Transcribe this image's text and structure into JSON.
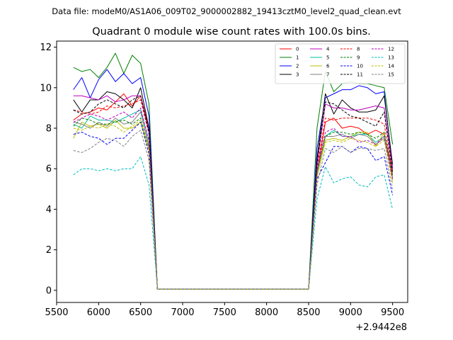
{
  "header": {
    "data_file": "Data file: modeM0/AS1A06_009T02_9000002882_19413cztM0_level2_quad_clean.evt"
  },
  "chart_data": {
    "type": "line",
    "title": "Quadrant 0 module wise count rates with 100.0s bins.",
    "xlabel": "",
    "ylabel": "",
    "x_offset_label": "+2.9442e8",
    "xlim": [
      5500,
      9680
    ],
    "ylim": [
      -0.6,
      12.3
    ],
    "xticks": [
      5500,
      6000,
      6500,
      7000,
      7500,
      8000,
      8500,
      9000,
      9500
    ],
    "yticks": [
      0,
      2,
      4,
      6,
      8,
      10,
      12
    ],
    "x": [
      5700,
      5800,
      5900,
      6000,
      6100,
      6200,
      6300,
      6400,
      6500,
      6600,
      6700,
      6800,
      6900,
      7000,
      7100,
      7200,
      7300,
      7400,
      7500,
      7600,
      7700,
      7800,
      7900,
      8000,
      8100,
      8200,
      8300,
      8400,
      8500,
      8600,
      8700,
      8800,
      8900,
      9000,
      9100,
      9200,
      9300,
      9400,
      9500
    ],
    "legend_position": "top-right",
    "series": [
      {
        "name": "0",
        "color": "#ff0000",
        "dashed": false,
        "values": [
          8.4,
          8.7,
          8.8,
          9.0,
          8.9,
          9.3,
          9.7,
          9.1,
          9.6,
          8.0,
          0.05,
          0.05,
          0.05,
          0.05,
          0.05,
          0.05,
          0.05,
          0.05,
          0.05,
          0.05,
          0.05,
          0.05,
          0.05,
          0.05,
          0.05,
          0.05,
          0.05,
          0.05,
          0.05,
          5.8,
          8.3,
          8.5,
          8.0,
          8.1,
          8.0,
          7.7,
          7.9,
          7.7,
          5.9
        ]
      },
      {
        "name": "1",
        "color": "#008000",
        "dashed": false,
        "values": [
          11.0,
          10.8,
          10.9,
          10.5,
          11.0,
          11.7,
          10.7,
          11.6,
          11.2,
          9.2,
          0.05,
          0.05,
          0.05,
          0.05,
          0.05,
          0.05,
          0.05,
          0.05,
          0.05,
          0.05,
          0.05,
          0.05,
          0.05,
          0.05,
          0.05,
          0.05,
          0.05,
          0.05,
          0.05,
          8.0,
          10.8,
          9.8,
          10.2,
          10.3,
          10.2,
          10.2,
          10.1,
          10.0,
          7.2
        ]
      },
      {
        "name": "2",
        "color": "#0000ff",
        "dashed": false,
        "values": [
          9.9,
          10.5,
          9.5,
          10.4,
          10.9,
          10.3,
          10.7,
          10.2,
          10.5,
          8.6,
          0.05,
          0.05,
          0.05,
          0.05,
          0.05,
          0.05,
          0.05,
          0.05,
          0.05,
          0.05,
          0.05,
          0.05,
          0.05,
          0.05,
          0.05,
          0.05,
          0.05,
          0.05,
          0.05,
          7.0,
          9.5,
          9.7,
          9.9,
          9.9,
          10.1,
          10.0,
          9.7,
          9.8,
          6.0
        ]
      },
      {
        "name": "3",
        "color": "#000000",
        "dashed": false,
        "values": [
          9.4,
          8.8,
          9.4,
          9.4,
          9.8,
          9.7,
          9.4,
          9.0,
          10.0,
          8.0,
          0.05,
          0.05,
          0.05,
          0.05,
          0.05,
          0.05,
          0.05,
          0.05,
          0.05,
          0.05,
          0.05,
          0.05,
          0.05,
          0.05,
          0.05,
          0.05,
          0.05,
          0.05,
          0.05,
          6.5,
          9.7,
          8.7,
          9.4,
          9.0,
          8.8,
          8.8,
          8.9,
          9.6,
          6.2
        ]
      },
      {
        "name": "4",
        "color": "#bf00bf",
        "dashed": false,
        "values": [
          9.6,
          9.6,
          9.5,
          9.4,
          9.6,
          9.3,
          9.4,
          9.6,
          9.6,
          7.8,
          0.05,
          0.05,
          0.05,
          0.05,
          0.05,
          0.05,
          0.05,
          0.05,
          0.05,
          0.05,
          0.05,
          0.05,
          0.05,
          0.05,
          0.05,
          0.05,
          0.05,
          0.05,
          0.05,
          6.2,
          9.2,
          9.0,
          9.0,
          8.9,
          8.9,
          9.0,
          9.1,
          9.0,
          6.0
        ]
      },
      {
        "name": "5",
        "color": "#00c0a0",
        "dashed": false,
        "values": [
          8.2,
          8.0,
          8.6,
          8.4,
          8.4,
          8.3,
          8.5,
          8.7,
          8.9,
          7.4,
          0.05,
          0.05,
          0.05,
          0.05,
          0.05,
          0.05,
          0.05,
          0.05,
          0.05,
          0.05,
          0.05,
          0.05,
          0.05,
          0.05,
          0.05,
          0.05,
          0.05,
          0.05,
          0.05,
          5.8,
          7.6,
          7.9,
          7.6,
          7.6,
          7.7,
          7.7,
          7.3,
          7.6,
          5.5
        ]
      },
      {
        "name": "6",
        "color": "#bfbf00",
        "dashed": false,
        "values": [
          7.5,
          8.3,
          8.1,
          8.2,
          8.0,
          8.4,
          8.0,
          8.0,
          8.3,
          6.9,
          0.05,
          0.05,
          0.05,
          0.05,
          0.05,
          0.05,
          0.05,
          0.05,
          0.05,
          0.05,
          0.05,
          0.05,
          0.05,
          0.05,
          0.05,
          0.05,
          0.05,
          0.05,
          0.05,
          5.6,
          7.4,
          7.5,
          7.4,
          7.6,
          7.8,
          7.8,
          7.1,
          7.8,
          5.4
        ]
      },
      {
        "name": "7",
        "color": "#808080",
        "dashed": false,
        "values": [
          8.3,
          8.2,
          8.0,
          8.3,
          8.1,
          8.5,
          8.2,
          8.3,
          8.8,
          7.1,
          0.05,
          0.05,
          0.05,
          0.05,
          0.05,
          0.05,
          0.05,
          0.05,
          0.05,
          0.05,
          0.05,
          0.05,
          0.05,
          0.05,
          0.05,
          0.05,
          0.05,
          0.05,
          0.05,
          5.9,
          7.6,
          7.6,
          7.7,
          7.5,
          7.7,
          7.6,
          7.2,
          7.5,
          5.6
        ]
      },
      {
        "name": "8",
        "color": "#ff0000",
        "dashed": true,
        "values": [
          8.9,
          8.8,
          8.7,
          8.8,
          9.1,
          9.0,
          9.1,
          9.2,
          9.4,
          7.7,
          0.05,
          0.05,
          0.05,
          0.05,
          0.05,
          0.05,
          0.05,
          0.05,
          0.05,
          0.05,
          0.05,
          0.05,
          0.05,
          0.05,
          0.05,
          0.05,
          0.05,
          0.05,
          0.05,
          6.0,
          8.5,
          8.4,
          8.5,
          8.5,
          8.5,
          8.5,
          8.4,
          8.2,
          5.7
        ]
      },
      {
        "name": "9",
        "color": "#008000",
        "dashed": true,
        "values": [
          8.1,
          8.5,
          8.4,
          8.2,
          8.2,
          8.3,
          8.4,
          8.2,
          8.5,
          7.0,
          0.05,
          0.05,
          0.05,
          0.05,
          0.05,
          0.05,
          0.05,
          0.05,
          0.05,
          0.05,
          0.05,
          0.05,
          0.05,
          0.05,
          0.05,
          0.05,
          0.05,
          0.05,
          0.05,
          5.8,
          7.6,
          7.8,
          7.8,
          7.7,
          7.8,
          7.7,
          7.5,
          7.8,
          5.7
        ]
      },
      {
        "name": "10",
        "color": "#0000ff",
        "dashed": true,
        "values": [
          7.7,
          7.8,
          7.6,
          7.5,
          7.2,
          7.5,
          7.5,
          7.9,
          8.3,
          6.7,
          0.05,
          0.05,
          0.05,
          0.05,
          0.05,
          0.05,
          0.05,
          0.05,
          0.05,
          0.05,
          0.05,
          0.05,
          0.05,
          0.05,
          0.05,
          0.05,
          0.05,
          0.05,
          0.05,
          5.5,
          6.3,
          7.1,
          7.1,
          6.8,
          7.1,
          7.0,
          6.4,
          6.6,
          4.7
        ]
      },
      {
        "name": "11",
        "color": "#000000",
        "dashed": true,
        "values": [
          8.9,
          8.7,
          8.8,
          9.2,
          9.4,
          9.2,
          9.0,
          9.4,
          9.6,
          7.8,
          0.05,
          0.05,
          0.05,
          0.05,
          0.05,
          0.05,
          0.05,
          0.05,
          0.05,
          0.05,
          0.05,
          0.05,
          0.05,
          0.05,
          0.05,
          0.05,
          0.05,
          0.05,
          0.05,
          6.3,
          9.3,
          9.2,
          8.9,
          8.6,
          8.5,
          8.3,
          8.1,
          8.8,
          5.8
        ]
      },
      {
        "name": "12",
        "color": "#bf00bf",
        "dashed": true,
        "values": [
          8.3,
          8.5,
          8.7,
          8.6,
          8.4,
          8.6,
          8.8,
          8.5,
          9.0,
          7.3,
          0.05,
          0.05,
          0.05,
          0.05,
          0.05,
          0.05,
          0.05,
          0.05,
          0.05,
          0.05,
          0.05,
          0.05,
          0.05,
          0.05,
          0.05,
          0.05,
          0.05,
          0.05,
          0.05,
          5.9,
          7.8,
          8.0,
          7.6,
          7.6,
          7.3,
          7.4,
          7.2,
          7.6,
          5.5
        ]
      },
      {
        "name": "13",
        "color": "#00bfbf",
        "dashed": true,
        "values": [
          5.7,
          6.0,
          6.0,
          5.9,
          6.0,
          5.9,
          6.0,
          6.0,
          6.6,
          5.2,
          0.05,
          0.05,
          0.05,
          0.05,
          0.05,
          0.05,
          0.05,
          0.05,
          0.05,
          0.05,
          0.05,
          0.05,
          0.05,
          0.05,
          0.05,
          0.05,
          0.05,
          0.05,
          0.05,
          4.5,
          6.1,
          5.3,
          5.5,
          5.6,
          5.2,
          5.1,
          5.6,
          5.7,
          4.0
        ]
      },
      {
        "name": "14",
        "color": "#bfbf00",
        "dashed": true,
        "values": [
          8.0,
          7.9,
          8.1,
          8.0,
          8.2,
          8.1,
          7.8,
          8.1,
          8.4,
          6.9,
          0.05,
          0.05,
          0.05,
          0.05,
          0.05,
          0.05,
          0.05,
          0.05,
          0.05,
          0.05,
          0.05,
          0.05,
          0.05,
          0.05,
          0.05,
          0.05,
          0.05,
          0.05,
          0.05,
          5.6,
          7.3,
          7.4,
          7.3,
          7.5,
          7.4,
          7.3,
          7.1,
          7.4,
          5.3
        ]
      },
      {
        "name": "15",
        "color": "#808080",
        "dashed": true,
        "values": [
          6.9,
          6.8,
          7.0,
          7.3,
          7.5,
          7.4,
          7.1,
          7.6,
          7.9,
          6.4,
          0.05,
          0.05,
          0.05,
          0.05,
          0.05,
          0.05,
          0.05,
          0.05,
          0.05,
          0.05,
          0.05,
          0.05,
          0.05,
          0.05,
          0.05,
          0.05,
          0.05,
          0.05,
          0.05,
          5.2,
          7.0,
          6.8,
          7.1,
          6.8,
          7.0,
          7.0,
          6.9,
          7.0,
          5.0
        ]
      }
    ]
  }
}
